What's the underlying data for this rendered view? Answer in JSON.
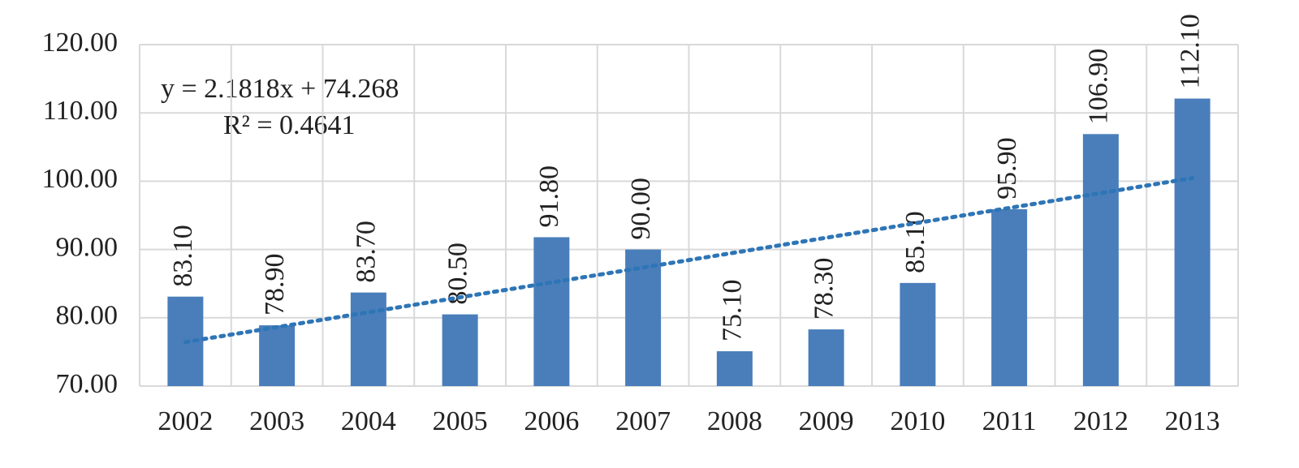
{
  "chart_data": {
    "type": "bar",
    "categories": [
      "2002",
      "2003",
      "2004",
      "2005",
      "2006",
      "2007",
      "2008",
      "2009",
      "2010",
      "2011",
      "2012",
      "2013"
    ],
    "values": [
      83.1,
      78.9,
      83.7,
      80.5,
      91.8,
      90.0,
      75.1,
      78.3,
      85.1,
      95.9,
      106.9,
      112.1
    ],
    "value_labels": [
      "83.10",
      "78.90",
      "83.70",
      "80.50",
      "91.80",
      "90.00",
      "75.10",
      "78.30",
      "85.10",
      "95.90",
      "106.90",
      "112.10"
    ],
    "color": "#4a7ebb",
    "ylim": [
      70,
      120
    ],
    "yticks": [
      {
        "value": 70,
        "label": "70.00"
      },
      {
        "value": 80,
        "label": "80.00"
      },
      {
        "value": 90,
        "label": "90.00"
      },
      {
        "value": 100,
        "label": "100.00"
      },
      {
        "value": 110,
        "label": "110.00"
      },
      {
        "value": 120,
        "label": "120.00"
      }
    ],
    "grid": true,
    "trendline": {
      "slope": 2.1818,
      "intercept": 74.268,
      "color": "#2e75b6",
      "equation_label": "y = 2.1818x + 74.268",
      "r2_label": "R² = 0.4641"
    }
  }
}
